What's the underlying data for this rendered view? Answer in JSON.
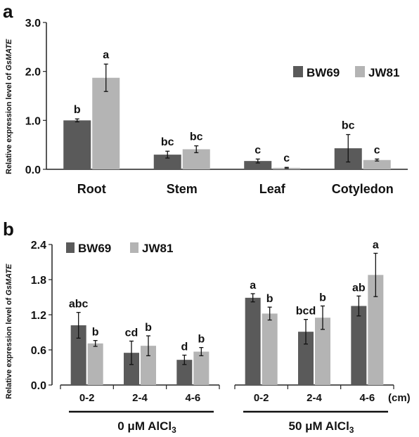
{
  "chart_data": [
    {
      "panel": "a",
      "type": "bar",
      "ylabel_prefix": "Relative expression level of ",
      "ylabel_gene": "GsMATE",
      "ylim": [
        0,
        3.0
      ],
      "yticks": [
        "0.0",
        "1.0",
        "2.0",
        "3.0"
      ],
      "categories": [
        "Root",
        "Stem",
        "Leaf",
        "Cotyledon"
      ],
      "legend_position": "right",
      "series": [
        {
          "name": "BW69",
          "color": "#5a5a5a",
          "values": [
            1.0,
            0.3,
            0.17,
            0.43
          ],
          "errors": [
            0.03,
            0.07,
            0.04,
            0.28
          ],
          "labels": [
            "b",
            "bc",
            "c",
            "bc"
          ]
        },
        {
          "name": "JW81",
          "color": "#b4b4b4",
          "values": [
            1.87,
            0.41,
            0.03,
            0.19
          ],
          "errors": [
            0.28,
            0.07,
            0.01,
            0.02
          ],
          "labels": [
            "a",
            "bc",
            "c",
            "c"
          ]
        }
      ]
    },
    {
      "panel": "b",
      "type": "bar",
      "ylabel_prefix": "Relative expression level of ",
      "ylabel_gene": "GsMATE",
      "ylim": [
        0,
        2.4
      ],
      "yticks": [
        "0.0",
        "0.6",
        "1.2",
        "1.8",
        "2.4"
      ],
      "groups": [
        {
          "condition": "0 μM AlCl",
          "subscript": "3",
          "categories": [
            "0-2",
            "2-4",
            "4-6"
          ]
        },
        {
          "condition": "50 μM AlCl",
          "subscript": "3",
          "categories": [
            "0-2",
            "2-4",
            "4-6"
          ]
        }
      ],
      "unit": "(cm)",
      "legend_position": "top-left",
      "series": [
        {
          "name": "BW69",
          "color": "#5a5a5a",
          "values": [
            1.02,
            0.55,
            0.43,
            1.49,
            0.91,
            1.35
          ],
          "errors": [
            0.22,
            0.2,
            0.08,
            0.07,
            0.21,
            0.17
          ],
          "labels": [
            "abc",
            "cd",
            "d",
            "a",
            "bcd",
            "ab"
          ]
        },
        {
          "name": "JW81",
          "color": "#b4b4b4",
          "values": [
            0.71,
            0.67,
            0.57,
            1.22,
            1.15,
            1.88
          ],
          "errors": [
            0.05,
            0.17,
            0.07,
            0.11,
            0.2,
            0.37
          ],
          "labels": [
            "b",
            "b",
            "b",
            "b",
            "b",
            "a"
          ]
        }
      ]
    }
  ]
}
